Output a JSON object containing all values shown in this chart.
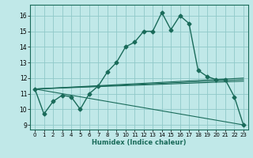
{
  "title": "",
  "xlabel": "Humidex (Indice chaleur)",
  "bg_color": "#c0e8e8",
  "grid_color": "#90c8c8",
  "line_color": "#1a6b5a",
  "xlim": [
    -0.5,
    23.5
  ],
  "ylim": [
    8.7,
    16.7
  ],
  "yticks": [
    9,
    10,
    11,
    12,
    13,
    14,
    15,
    16
  ],
  "xticks": [
    0,
    1,
    2,
    3,
    4,
    5,
    6,
    7,
    8,
    9,
    10,
    11,
    12,
    13,
    14,
    15,
    16,
    17,
    18,
    19,
    20,
    21,
    22,
    23
  ],
  "main_series": {
    "x": [
      0,
      1,
      2,
      3,
      4,
      5,
      6,
      7,
      8,
      9,
      10,
      11,
      12,
      13,
      14,
      15,
      16,
      17,
      18,
      19,
      20,
      21,
      22,
      23
    ],
    "y": [
      11.3,
      9.7,
      10.5,
      10.9,
      10.8,
      10.0,
      11.0,
      11.5,
      12.4,
      13.0,
      14.0,
      14.3,
      15.0,
      15.0,
      16.2,
      15.1,
      16.0,
      15.5,
      12.5,
      12.1,
      11.9,
      11.9,
      10.8,
      9.0
    ]
  },
  "trend_lines": [
    {
      "x": [
        0,
        23
      ],
      "y": [
        11.3,
        9.0
      ]
    },
    {
      "x": [
        0,
        23
      ],
      "y": [
        11.3,
        11.8
      ]
    },
    {
      "x": [
        0,
        23
      ],
      "y": [
        11.3,
        11.9
      ]
    },
    {
      "x": [
        0,
        23
      ],
      "y": [
        11.3,
        12.0
      ]
    }
  ]
}
